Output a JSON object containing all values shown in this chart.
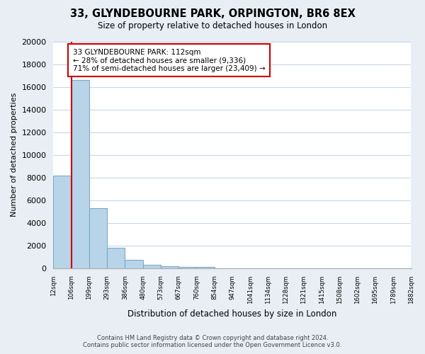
{
  "title": "33, GLYNDEBOURNE PARK, ORPINGTON, BR6 8EX",
  "subtitle": "Size of property relative to detached houses in London",
  "xlabel": "Distribution of detached houses by size in London",
  "ylabel": "Number of detached properties",
  "bar_values": [
    8200,
    16600,
    5300,
    1800,
    750,
    300,
    150,
    100,
    100,
    0,
    0,
    0,
    0,
    0,
    0,
    0,
    0,
    0,
    0,
    0
  ],
  "bar_labels": [
    "12sqm",
    "106sqm",
    "199sqm",
    "293sqm",
    "386sqm",
    "480sqm",
    "573sqm",
    "667sqm",
    "760sqm",
    "854sqm",
    "947sqm",
    "1041sqm",
    "1134sqm",
    "1228sqm",
    "1321sqm",
    "1415sqm",
    "1508sqm",
    "1602sqm",
    "1695sqm",
    "1789sqm",
    "1882sqm"
  ],
  "bar_color": "#b8d4e8",
  "bar_edge_color": "#7aaac8",
  "vline_x": 1,
  "vline_color": "#cc0000",
  "ylim": [
    0,
    20000
  ],
  "yticks": [
    0,
    2000,
    4000,
    6000,
    8000,
    10000,
    12000,
    14000,
    16000,
    18000,
    20000
  ],
  "annotation_title": "33 GLYNDEBOURNE PARK: 112sqm",
  "annotation_line1": "← 28% of detached houses are smaller (9,336)",
  "annotation_line2": "71% of semi-detached houses are larger (23,409) →",
  "annotation_box_color": "#ffffff",
  "annotation_box_edge": "#cc0000",
  "footer_line1": "Contains HM Land Registry data © Crown copyright and database right 2024.",
  "footer_line2": "Contains public sector information licensed under the Open Government Licence v3.0.",
  "bg_color": "#e8eef4",
  "plot_bg_color": "#ffffff",
  "grid_color": "#c8d8e8"
}
